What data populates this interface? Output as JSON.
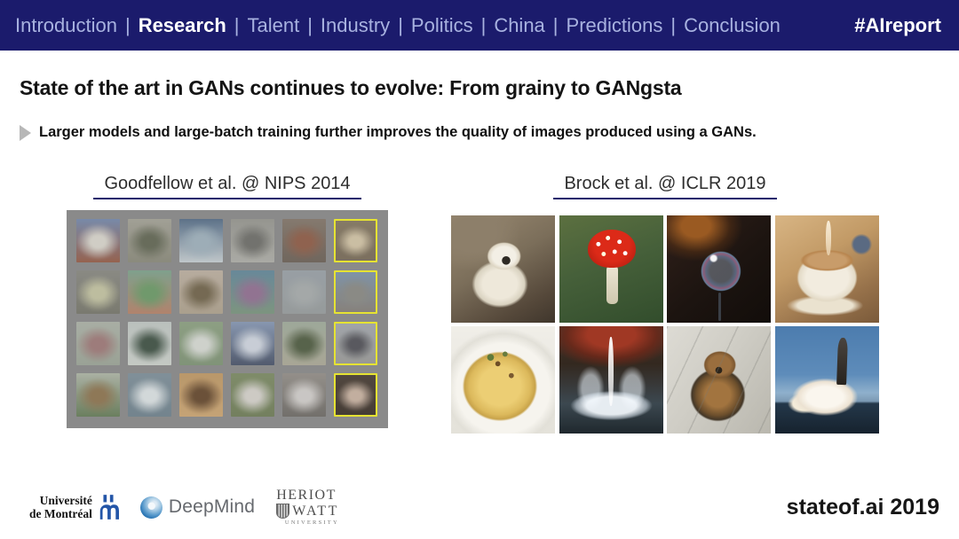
{
  "navbar": {
    "items": [
      "Introduction",
      "Research",
      "Talent",
      "Industry",
      "Politics",
      "China",
      "Predictions",
      "Conclusion"
    ],
    "active_item": "Research",
    "separator": "|",
    "hashtag": "#AIreport",
    "bg_color": "#1b1b6c",
    "text_color": "#a8b2e0",
    "active_color": "#ffffff"
  },
  "slide": {
    "title": "State of the art in GANs continues to evolve: From grainy to GANgsta",
    "bullet": "Larger models and large-batch training further improves the quality of images produced using a GANs."
  },
  "panels": {
    "left": {
      "heading": "Goodfellow et al. @ NIPS 2014"
    },
    "right": {
      "heading": "Brock et al. @ ICLR 2019"
    }
  },
  "gan_grid_2014": {
    "rows": 4,
    "cols": 6,
    "panel_color": "#8a8a8a",
    "highlight_color": "#e6e332",
    "cells": [
      {
        "label": "blurry mountain landscape",
        "colors": [
          "#6f8fc0",
          "#dcd8cc",
          "#a85838"
        ],
        "highlighted": false
      },
      {
        "label": "blurry horses",
        "colors": [
          "#a8a698",
          "#646a52",
          "#8a8a76"
        ],
        "highlighted": false
      },
      {
        "label": "blurry boats",
        "colors": [
          "#49698c",
          "#9db4c2",
          "#cfd8da"
        ],
        "highlighted": false
      },
      {
        "label": "blurry rock texture",
        "colors": [
          "#96968e",
          "#70706a",
          "#b2b2aa"
        ],
        "highlighted": false
      },
      {
        "label": "blurry brown horse",
        "colors": [
          "#8a7a6a",
          "#9c5c40",
          "#6e6054"
        ],
        "highlighted": false
      },
      {
        "label": "blurry white horse",
        "colors": [
          "#8a7a5e",
          "#d8c6a0",
          "#7c6c54"
        ],
        "highlighted": true
      },
      {
        "label": "blurry cat",
        "colors": [
          "#8c8c84",
          "#c6c69c",
          "#787868"
        ],
        "highlighted": false
      },
      {
        "label": "blurry garden",
        "colors": [
          "#72aa8e",
          "#66a060",
          "#c87e5e"
        ],
        "highlighted": false
      },
      {
        "label": "blurry frog",
        "colors": [
          "#c2b2a0",
          "#766646",
          "#b2a288"
        ],
        "highlighted": false
      },
      {
        "label": "blurry flowers",
        "colors": [
          "#5c8aa6",
          "#9a6f9a",
          "#7a9a78"
        ],
        "highlighted": false
      },
      {
        "label": "blurry hazy field",
        "colors": [
          "#9aa4ac",
          "#a8aeae",
          "#989e9e"
        ],
        "highlighted": false
      },
      {
        "label": "blurry field with figure",
        "colors": [
          "#7a98b4",
          "#8c8c84",
          "#8a8076"
        ],
        "highlighted": true
      },
      {
        "label": "blurry hills",
        "colors": [
          "#aeb6a8",
          "#a87a78",
          "#9aa694"
        ],
        "highlighted": false
      },
      {
        "label": "blurry wreath",
        "colors": [
          "#c0c8c4",
          "#3e5544",
          "#cdd4cc"
        ],
        "highlighted": false
      },
      {
        "label": "blurry sheep",
        "colors": [
          "#8ca67e",
          "#d8dcd4",
          "#7c9670"
        ],
        "highlighted": false
      },
      {
        "label": "blurry sky",
        "colors": [
          "#8aa0c4",
          "#d0d8e4",
          "#44506a"
        ],
        "highlighted": false
      },
      {
        "label": "blurry plane in grass",
        "colors": [
          "#9eae9a",
          "#50603e",
          "#b0ac94"
        ],
        "highlighted": false
      },
      {
        "label": "blurry airplane",
        "colors": [
          "#a4aab2",
          "#54545c",
          "#9c9c98"
        ],
        "highlighted": true
      },
      {
        "label": "blurry dogs",
        "colors": [
          "#b4bcab",
          "#967648",
          "#5e7c4c"
        ],
        "highlighted": false
      },
      {
        "label": "blurry sea splash",
        "colors": [
          "#7e94a0",
          "#dce4e6",
          "#6c8492"
        ],
        "highlighted": false
      },
      {
        "label": "blurry orange cat",
        "colors": [
          "#c89858",
          "#6e4a28",
          "#d8a868"
        ],
        "highlighted": false
      },
      {
        "label": "blurry bird",
        "colors": [
          "#7e9060",
          "#d8d4cc",
          "#6e8050"
        ],
        "highlighted": false
      },
      {
        "label": "blurry dog",
        "colors": [
          "#9a948c",
          "#d4d0cc",
          "#6e6a64"
        ],
        "highlighted": false
      },
      {
        "label": "blurry owl",
        "colors": [
          "#4e4034",
          "#d0b49e",
          "#3e3228"
        ],
        "highlighted": true
      }
    ]
  },
  "gan_grid_2019": {
    "images": [
      {
        "id": "wolf",
        "label": "white wolf"
      },
      {
        "id": "mushroom",
        "label": "red fly agaric mushroom"
      },
      {
        "id": "bubble",
        "label": "soap bubble"
      },
      {
        "id": "coffee",
        "label": "latte coffee cup"
      },
      {
        "id": "pasta",
        "label": "carbonara pasta"
      },
      {
        "id": "fountain",
        "label": "fountain with autumn foliage"
      },
      {
        "id": "dog",
        "label": "terrier dog"
      },
      {
        "id": "shuttle",
        "label": "space shuttle launch"
      }
    ]
  },
  "footer": {
    "udem": {
      "line1": "Université",
      "line2": "de Montréal"
    },
    "deepmind": {
      "label": "DeepMind"
    },
    "heriot": {
      "line1": "HERIOT",
      "line2": "WATT",
      "line3": "UNIVERSITY"
    },
    "brand": "stateof.ai 2019"
  }
}
